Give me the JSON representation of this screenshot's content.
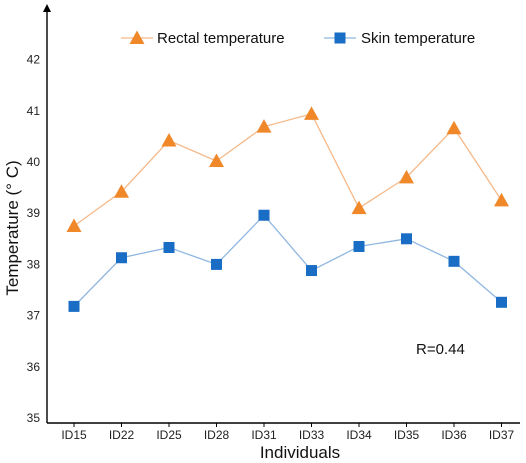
{
  "chart_data": {
    "type": "line",
    "title": "",
    "xlabel": "Individuals",
    "ylabel": "Temperature (° C)",
    "ylim": [
      35,
      43
    ],
    "yticks": [
      35,
      36,
      37,
      38,
      39,
      40,
      41,
      42
    ],
    "categories": [
      "ID15",
      "ID22",
      "ID25",
      "ID28",
      "ID31",
      "ID33",
      "ID34",
      "ID35",
      "ID36",
      "ID37"
    ],
    "series": [
      {
        "name": "Rectal temperature",
        "marker": "triangle",
        "line_color": "#f5b98a",
        "marker_color": "#f0882a",
        "values": [
          38.75,
          39.42,
          40.42,
          40.02,
          40.69,
          40.94,
          39.1,
          39.7,
          40.66,
          39.25
        ]
      },
      {
        "name": "Skin temperature",
        "marker": "square",
        "line_color": "#8fb7e0",
        "marker_color": "#1a6dc4",
        "values": [
          37.18,
          38.13,
          38.33,
          38.0,
          38.96,
          37.88,
          38.35,
          38.5,
          38.06,
          37.26
        ]
      }
    ],
    "annotation": "R=0.44",
    "legend_position": "top",
    "grid": false
  }
}
